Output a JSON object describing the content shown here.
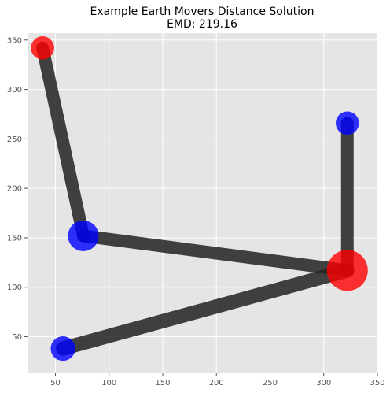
{
  "chart_data": {
    "type": "scatter",
    "title": "Example Earth Movers Distance Solution",
    "subtitle": "EMD: 219.16",
    "xlabel": "",
    "ylabel": "",
    "xlim": [
      24,
      350
    ],
    "ylim": [
      13,
      357
    ],
    "x_ticks": [
      50,
      100,
      150,
      200,
      250,
      300,
      350
    ],
    "y_ticks": [
      50,
      100,
      150,
      200,
      250,
      300,
      350
    ],
    "grid": true,
    "colors": {
      "background": "#e5e5e5",
      "grid": "#ffffff",
      "source": "#ff0000",
      "sink": "#0000ff",
      "flow": "#222222"
    },
    "sources": [
      {
        "x": 38,
        "y": 342,
        "weight": 0.3
      },
      {
        "x": 322,
        "y": 117,
        "weight": 1.0
      }
    ],
    "sinks": [
      {
        "x": 322,
        "y": 266,
        "weight": 0.3
      },
      {
        "x": 76,
        "y": 152,
        "weight": 0.6
      },
      {
        "x": 57,
        "y": 38,
        "weight": 0.35
      }
    ],
    "flows": [
      {
        "from": [
          38,
          342
        ],
        "to": [
          76,
          152
        ],
        "amount": 0.3
      },
      {
        "from": [
          76,
          152
        ],
        "to": [
          322,
          117
        ],
        "amount": 0.3
      },
      {
        "from": [
          322,
          117
        ],
        "to": [
          322,
          266
        ],
        "amount": 0.3
      },
      {
        "from": [
          322,
          117
        ],
        "to": [
          57,
          38
        ],
        "amount": 0.35
      }
    ]
  }
}
